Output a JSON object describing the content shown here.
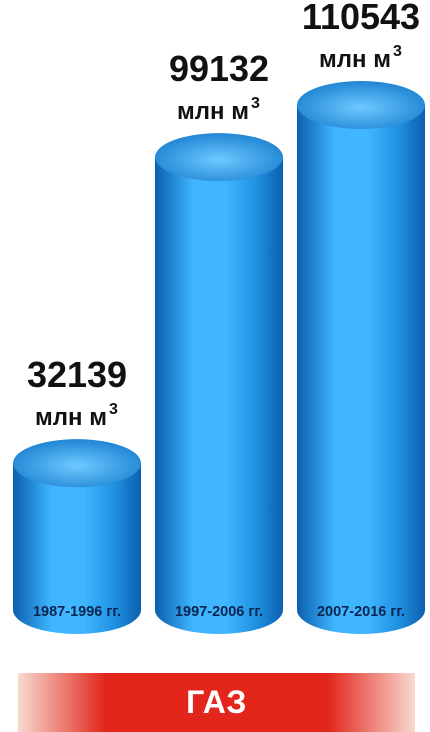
{
  "chart_data": {
    "type": "bar",
    "style": "3d-cylinder",
    "categories": [
      "1987-1996 гг.",
      "1997-2006 гг.",
      "2007-2016 гг."
    ],
    "values": [
      32139,
      99132,
      110543
    ],
    "value_labels": [
      "32139",
      "99132",
      "110543"
    ],
    "unit_text": "млн м",
    "unit_superscript": "3",
    "ylim": [
      0,
      110543
    ],
    "grid": false,
    "legend": "none",
    "colors": {
      "cylinder_light": "#3fb6ff",
      "cylinder_mid": "#1f8fe0",
      "cylinder_dark": "#0b5fae",
      "top_light": "#6ec9ff",
      "top_dark": "#1a7fd0",
      "label_text": "#111111",
      "category_text": "#0b2550"
    }
  },
  "banner": {
    "label": "ГАЗ",
    "color_edge": "#f8d9cf",
    "color_center": "#e2261c"
  }
}
